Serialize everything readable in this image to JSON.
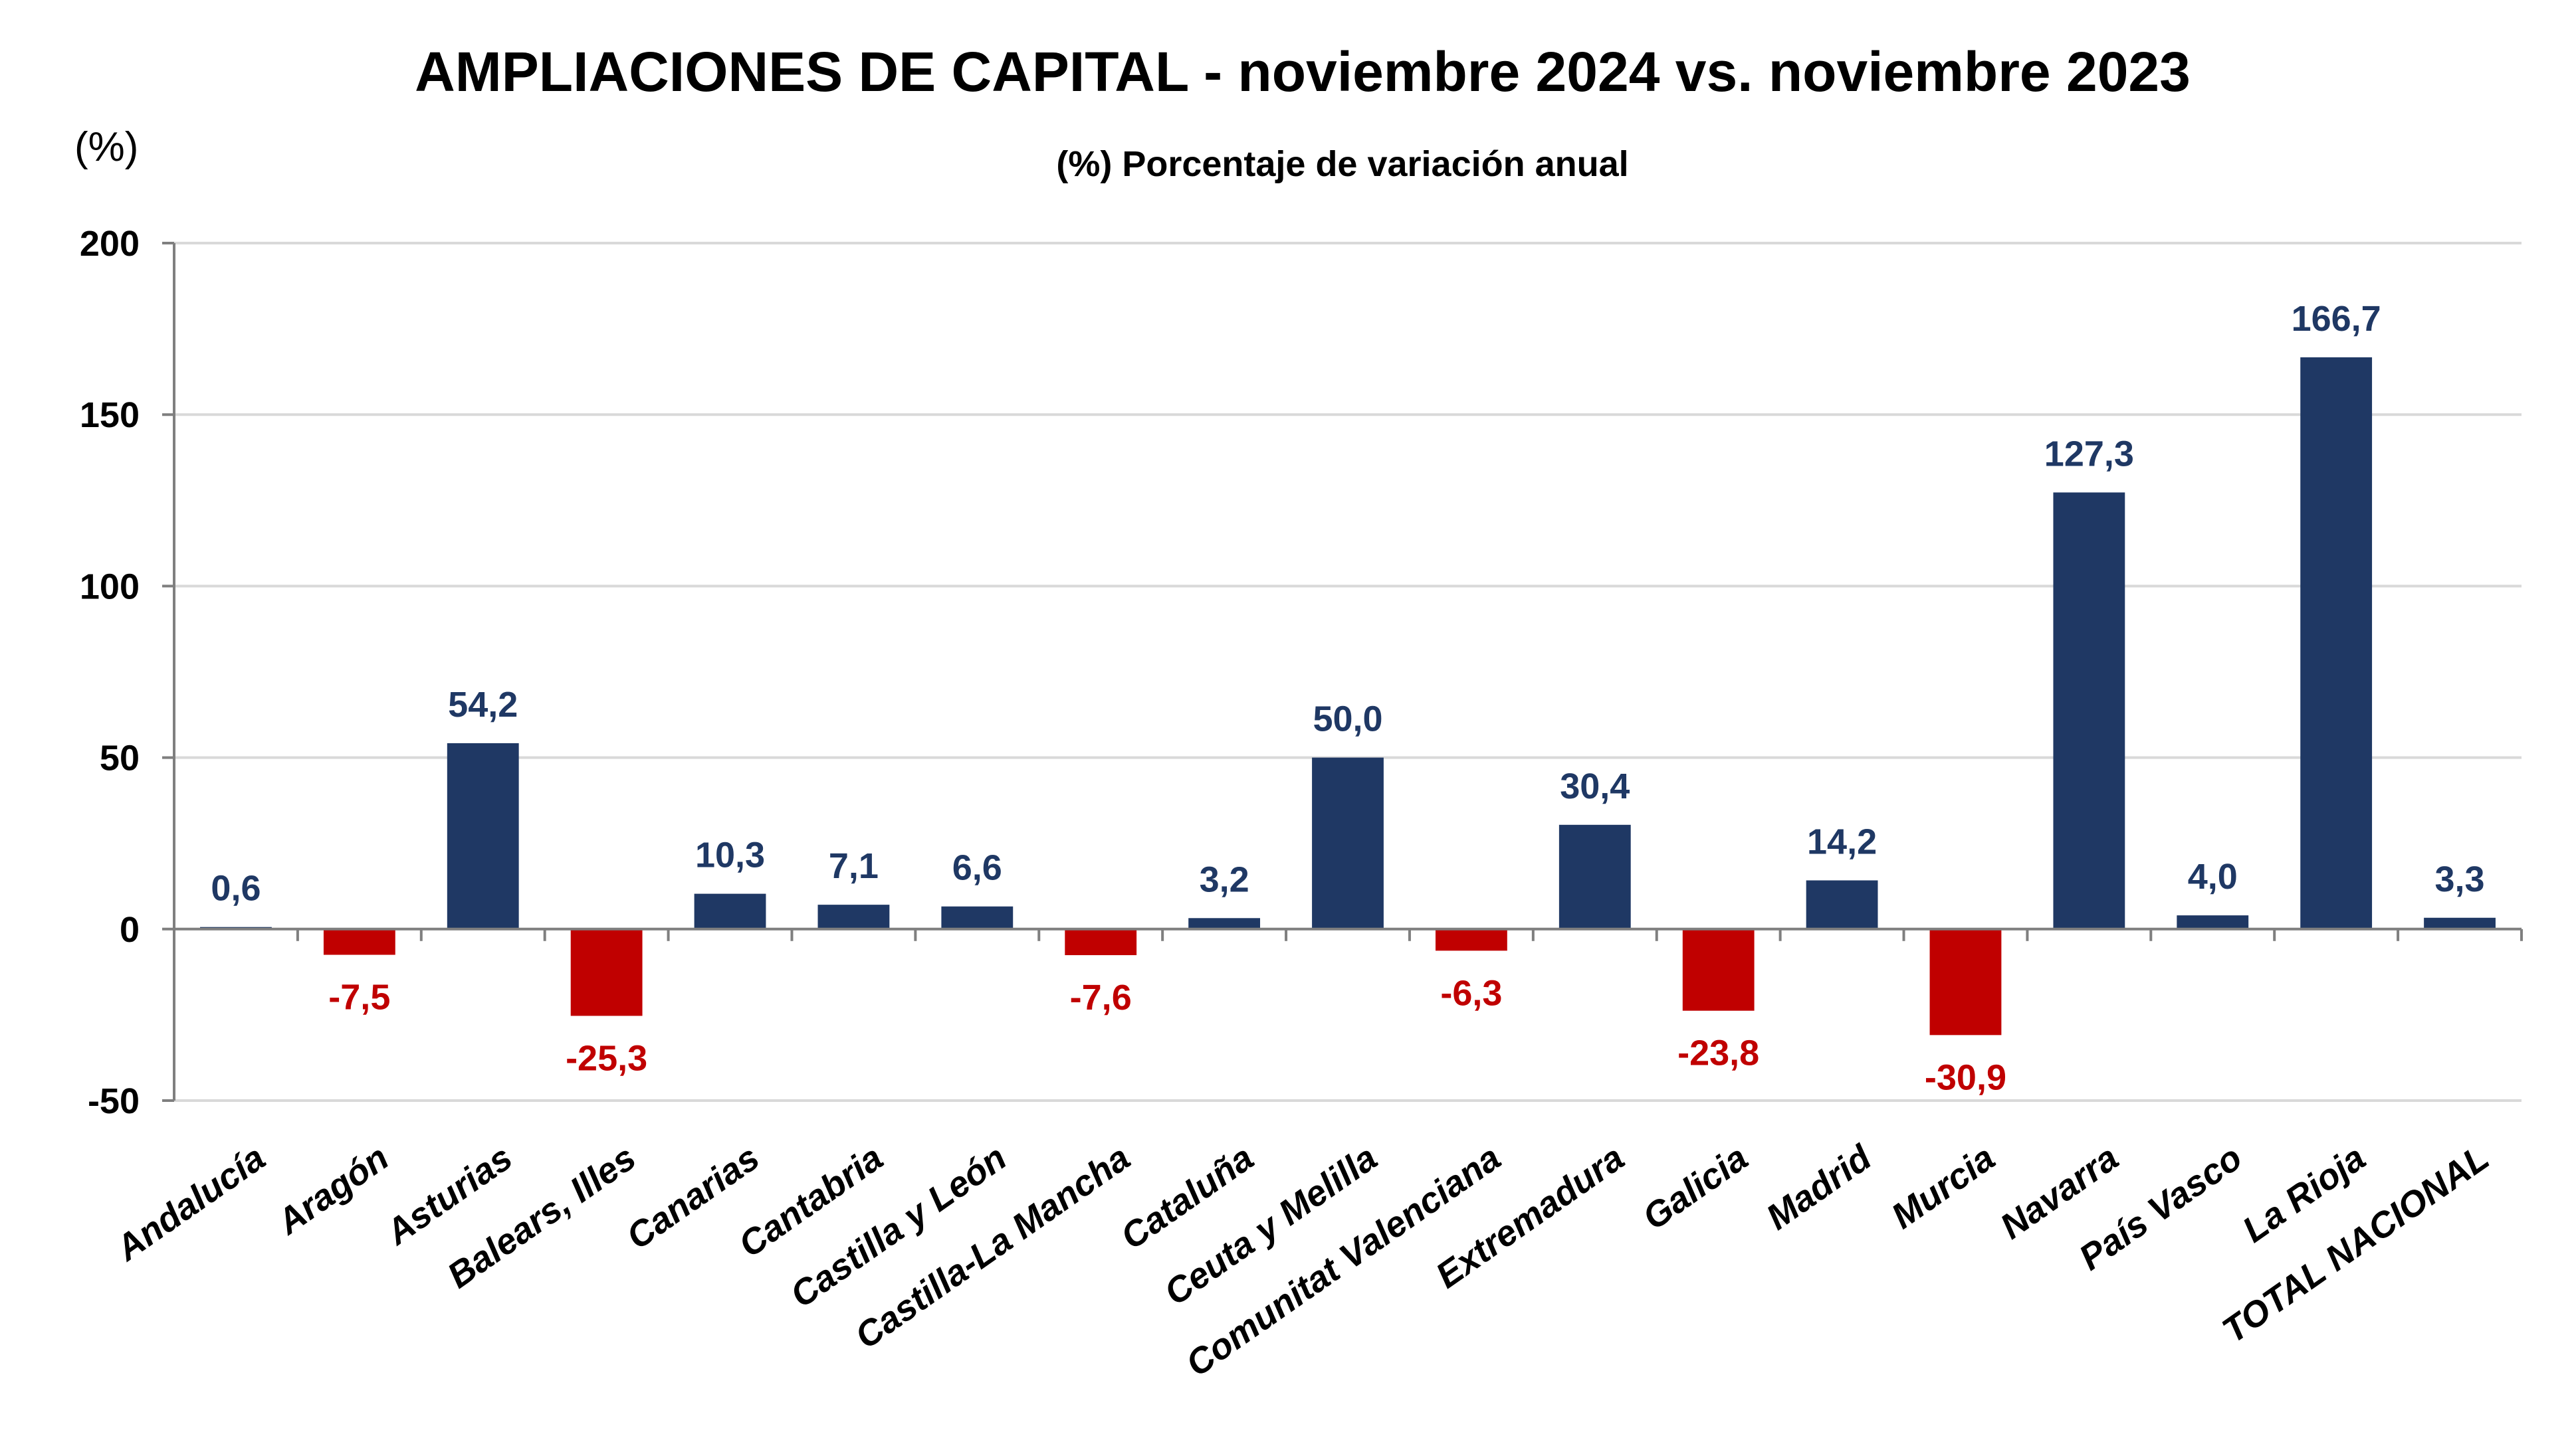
{
  "chart_data": {
    "type": "bar",
    "title": "AMPLIACIONES DE CAPITAL - noviembre 2024 vs. noviembre 2023",
    "subtitle": "(%) Porcentaje de variación anual",
    "ylabel": "(%)",
    "xlabel": "",
    "ylim": [
      -50,
      200
    ],
    "yticks": [
      200,
      150,
      100,
      50,
      0,
      -50
    ],
    "ytick_labels": [
      "200",
      "150",
      "100",
      "50",
      "0",
      "-50"
    ],
    "grid": true,
    "legend": "none",
    "colors": {
      "positive": "#1f3864",
      "negative": "#c00000",
      "grid": "#d9d9d9",
      "axis": "#7f7f7f"
    },
    "categories": [
      "Andalucía",
      "Aragón",
      "Asturias",
      "Balears, Illes",
      "Canarias",
      "Cantabria",
      "Castilla y León",
      "Castilla-La Mancha",
      "Cataluña",
      "Ceuta y Melilla",
      "Comunitat Valenciana",
      "Extremadura",
      "Galicia",
      "Madrid",
      "Murcia",
      "Navarra",
      "País Vasco",
      "La Rioja",
      "TOTAL NACIONAL"
    ],
    "values": [
      0.6,
      -7.5,
      54.2,
      -25.3,
      10.3,
      7.1,
      6.6,
      -7.6,
      3.2,
      50.0,
      -6.3,
      30.4,
      -23.8,
      14.2,
      -30.9,
      127.3,
      4.0,
      166.7,
      3.3
    ],
    "value_labels": [
      "0,6",
      "-7,5",
      "54,2",
      "-25,3",
      "10,3",
      "7,1",
      "6,6",
      "-7,6",
      "3,2",
      "50,0",
      "-6,3",
      "30,4",
      "-23,8",
      "14,2",
      "-30,9",
      "127,3",
      "4,0",
      "166,7",
      "3,3"
    ]
  }
}
